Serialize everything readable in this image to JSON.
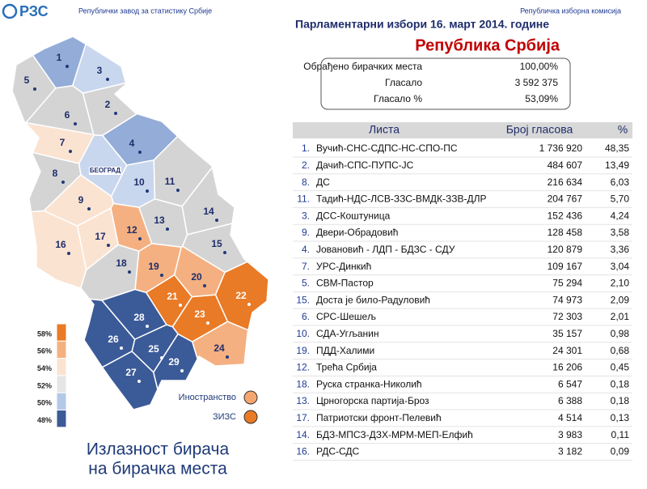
{
  "header": {
    "logo": "РЗС",
    "left": "Републички завод за статистику Србије",
    "right": "Републичка изборна комисија"
  },
  "title": "Парламентарни избори 16. март 2014. године",
  "subtitle": "Република Србија",
  "summary": [
    [
      "Обрађено бирачких места",
      "100,00%"
    ],
    [
      "Гласало",
      "3 592 375"
    ],
    [
      "Гласало %",
      "53,09%"
    ]
  ],
  "table": {
    "header": [
      "Листа",
      "Број гласова",
      "%"
    ],
    "rows": [
      [
        "1.",
        "Вучић-СНС-СДПС-НС-СПО-ПС",
        "1 736 920",
        "48,35"
      ],
      [
        "2.",
        "Дачић-СПС-ПУПС-ЈС",
        "484 607",
        "13,49"
      ],
      [
        "8.",
        "ДС",
        "216 634",
        "6,03"
      ],
      [
        "11.",
        "Тадић-НДС-ЛСВ-ЗЗС-ВМДК-ЗЗВ-ДЛР",
        "204 767",
        "5,70"
      ],
      [
        "3.",
        "ДСС-Коштуница",
        "152 436",
        "4,24"
      ],
      [
        "9.",
        "Двери-Обрадовић",
        "128 458",
        "3,58"
      ],
      [
        "4.",
        "Јовановић - ЛДП - БДЗС - СДУ",
        "120 879",
        "3,36"
      ],
      [
        "7.",
        "УРС-Динкић",
        "109 167",
        "3,04"
      ],
      [
        "5.",
        "СВМ-Пастор",
        "75 294",
        "2,10"
      ],
      [
        "15.",
        "Доста је било-Радуловић",
        "74 973",
        "2,09"
      ],
      [
        "6.",
        "СРС-Шешељ",
        "72 303",
        "2,01"
      ],
      [
        "10.",
        "СДА-Угљанин",
        "35 157",
        "0,98"
      ],
      [
        "19.",
        "ПДД-Халими",
        "24 301",
        "0,68"
      ],
      [
        "12.",
        "Трећа Србија",
        "16 206",
        "0,45"
      ],
      [
        "18.",
        "Руска странка-Николић",
        "6 547",
        "0,18"
      ],
      [
        "13.",
        "Црногорска партија-Броз",
        "6 388",
        "0,18"
      ],
      [
        "17.",
        "Патриотски фронт-Пелевић",
        "4 514",
        "0,13"
      ],
      [
        "14.",
        "БДЗ-МПСЗ-ДЗХ-МРМ-МЕП-Елфић",
        "3 983",
        "0,11"
      ],
      [
        "16.",
        "РДС-СДС",
        "3 182",
        "0,09"
      ]
    ]
  },
  "map": {
    "title": [
      "Излазност бирача",
      "на бирачка места"
    ],
    "capital": {
      "label": "БЕОГРАД",
      "color": "#c9d7ee"
    },
    "districts": [
      {
        "label": "1",
        "color": "#93acd8"
      },
      {
        "label": "2",
        "color": "#d4d4d4"
      },
      {
        "label": "3",
        "color": "#c9d7ee"
      },
      {
        "label": "4",
        "color": "#93acd8"
      },
      {
        "label": "5",
        "color": "#d4d4d4"
      },
      {
        "label": "6",
        "color": "#d4d4d4"
      },
      {
        "label": "7",
        "color": "#fbe3d1"
      },
      {
        "label": "8",
        "color": "#d4d4d4"
      },
      {
        "label": "9",
        "color": "#fbe3d1"
      },
      {
        "label": "10",
        "color": "#c9d7ee"
      },
      {
        "label": "11",
        "color": "#d4d4d4"
      },
      {
        "label": "12",
        "color": "#f5b081"
      },
      {
        "label": "13",
        "color": "#d4d4d4"
      },
      {
        "label": "14",
        "color": "#d4d4d4"
      },
      {
        "label": "15",
        "color": "#d4d4d4"
      },
      {
        "label": "16",
        "color": "#fbe3d1"
      },
      {
        "label": "17",
        "color": "#fbe3d1"
      },
      {
        "label": "18",
        "color": "#d4d4d4"
      },
      {
        "label": "19",
        "color": "#f5b081"
      },
      {
        "label": "20",
        "color": "#f5b081"
      },
      {
        "label": "21",
        "color": "#e97a26"
      },
      {
        "label": "22",
        "color": "#e97a26"
      },
      {
        "label": "23",
        "color": "#e97a26"
      },
      {
        "label": "24",
        "color": "#f5b081"
      },
      {
        "label": "25",
        "color": "#3b5a98"
      },
      {
        "label": "26",
        "color": "#3b5a98"
      },
      {
        "label": "27",
        "color": "#3b5a98"
      },
      {
        "label": "28",
        "color": "#3b5a98"
      },
      {
        "label": "29",
        "color": "#3b5a98"
      }
    ],
    "legend": [
      {
        "label": "58%",
        "color": "#e97a26"
      },
      {
        "label": "56%",
        "color": "#f5b081"
      },
      {
        "label": "54%",
        "color": "#fbe3d1"
      },
      {
        "label": "52%",
        "color": "#e6e6e6"
      },
      {
        "label": "50%",
        "color": "#b4c8e8"
      },
      {
        "label": "48%",
        "color": "#3b5a98"
      }
    ],
    "extra": [
      {
        "label": "Иностранство",
        "color": "#f5a66f"
      },
      {
        "label": "ЗИЗС",
        "color": "#e97a26"
      }
    ]
  }
}
